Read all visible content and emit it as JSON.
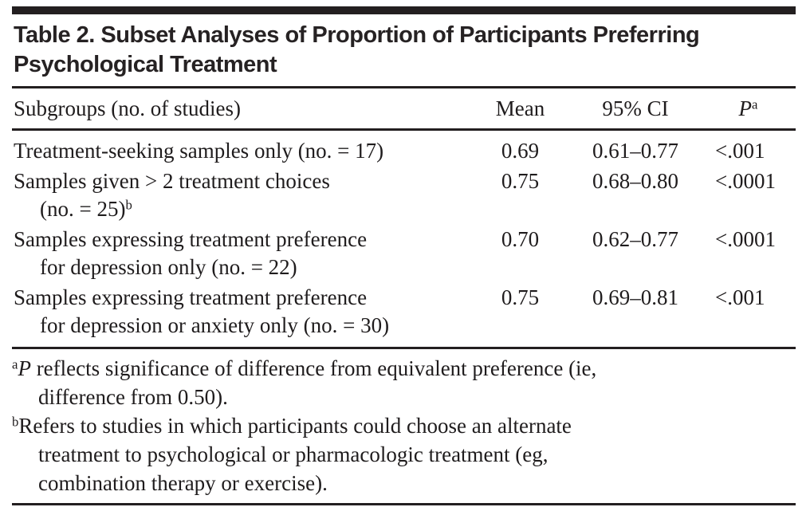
{
  "title": "Table 2. Subset Analyses of Proportion of Participants Preferring Psychological Treatment",
  "columns": {
    "subgroups": "Subgroups (no. of studies)",
    "mean": "Mean",
    "ci": "95% CI",
    "p": "P",
    "p_sup": "a"
  },
  "rows": [
    {
      "label_lines": [
        "Treatment-seeking samples only (no. = 17)"
      ],
      "sup": "",
      "mean": "0.69",
      "ci": "0.61–0.77",
      "p": "<.001"
    },
    {
      "label_lines": [
        "Samples given > 2 treatment choices",
        "(no. = 25)"
      ],
      "sup": "b",
      "mean": "0.75",
      "ci": "0.68–0.80",
      "p": "<.0001"
    },
    {
      "label_lines": [
        "Samples expressing treatment preference",
        "for depression only (no. = 22)"
      ],
      "sup": "",
      "mean": "0.70",
      "ci": "0.62–0.77",
      "p": "<.0001"
    },
    {
      "label_lines": [
        "Samples expressing treatment preference",
        "for depression or anxiety only (no. = 30)"
      ],
      "sup": "",
      "mean": "0.75",
      "ci": "0.69–0.81",
      "p": "<.001"
    }
  ],
  "footnotes": [
    {
      "marker": "a",
      "lead_italic": "P",
      "lines": [
        "reflects significance of difference from equivalent preference (ie,",
        "difference from 0.50)."
      ]
    },
    {
      "marker": "b",
      "lead_italic": "",
      "lines": [
        "Refers to studies in which participants could choose an alternate",
        "treatment to psychological or pharmacologic treatment (eg,",
        "combination therapy or exercise)."
      ]
    }
  ],
  "colors": {
    "text": "#1f1c1d",
    "rule": "#231f20",
    "background": "#ffffff"
  }
}
